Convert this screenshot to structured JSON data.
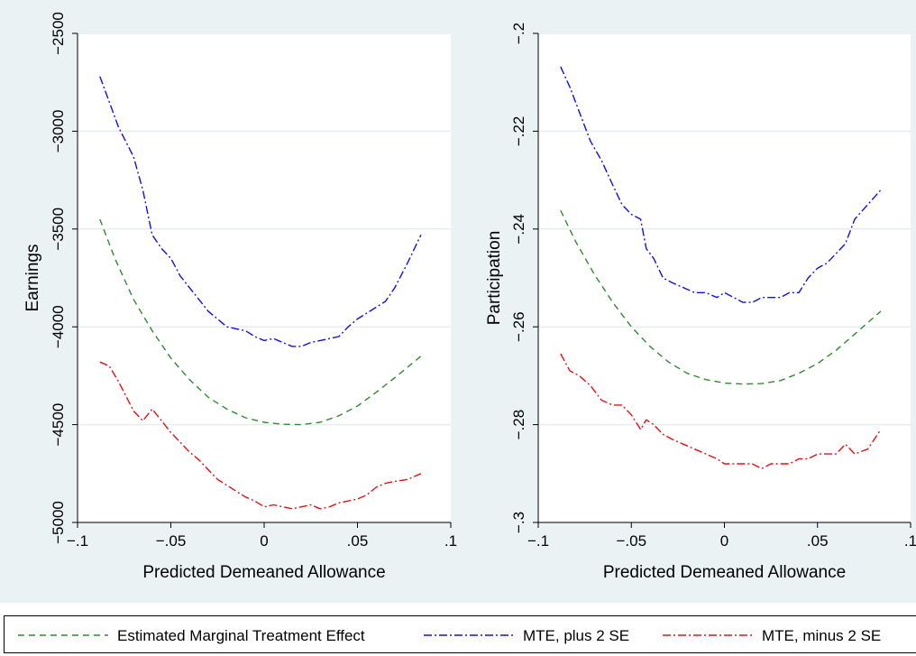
{
  "chart_data": [
    {
      "type": "line",
      "xlabel": "Predicted Demeaned Allowance",
      "ylabel": "Earnings",
      "xlim": [
        -0.1,
        0.1
      ],
      "ylim": [
        -5000,
        -2500
      ],
      "xticks": [
        -0.1,
        -0.05,
        0,
        0.05,
        0.1
      ],
      "xtick_labels": [
        "−.1",
        "−.05",
        "0",
        ".05",
        ".1"
      ],
      "yticks": [
        -5000,
        -4500,
        -4000,
        -3500,
        -3000,
        -2500
      ],
      "ytick_labels": [
        "−5000",
        "−4500",
        "−4000",
        "−3500",
        "−3000",
        "−2500"
      ],
      "grid": true,
      "series": [
        {
          "key": "mte",
          "color": "#2e8b2e",
          "dash": "7,5",
          "x": [
            -0.088,
            -0.08,
            -0.07,
            -0.06,
            -0.05,
            -0.04,
            -0.03,
            -0.02,
            -0.01,
            0,
            0.01,
            0.02,
            0.03,
            0.04,
            0.05,
            0.06,
            0.07,
            0.084
          ],
          "y": [
            -3450,
            -3650,
            -3860,
            -4020,
            -4160,
            -4270,
            -4360,
            -4420,
            -4465,
            -4488,
            -4498,
            -4500,
            -4488,
            -4455,
            -4405,
            -4335,
            -4260,
            -4150
          ]
        },
        {
          "key": "upper",
          "color": "#1010e6",
          "dash": "9,3,2,3",
          "x": [
            -0.088,
            -0.083,
            -0.078,
            -0.07,
            -0.065,
            -0.06,
            -0.055,
            -0.05,
            -0.045,
            -0.04,
            -0.035,
            -0.03,
            -0.025,
            -0.02,
            -0.015,
            -0.01,
            -0.005,
            0,
            0.005,
            0.01,
            0.015,
            0.02,
            0.025,
            0.03,
            0.035,
            0.04,
            0.045,
            0.05,
            0.055,
            0.06,
            0.065,
            0.07,
            0.077,
            0.084
          ],
          "y": [
            -2720,
            -2850,
            -2980,
            -3130,
            -3300,
            -3530,
            -3600,
            -3650,
            -3740,
            -3800,
            -3860,
            -3920,
            -3960,
            -4000,
            -4010,
            -4020,
            -4050,
            -4070,
            -4060,
            -4080,
            -4100,
            -4100,
            -4080,
            -4070,
            -4060,
            -4050,
            -4000,
            -3960,
            -3930,
            -3900,
            -3870,
            -3800,
            -3670,
            -3530
          ]
        },
        {
          "key": "lower",
          "color": "#e61010",
          "dash": "9,3,2,3",
          "x": [
            -0.088,
            -0.083,
            -0.078,
            -0.07,
            -0.065,
            -0.06,
            -0.055,
            -0.05,
            -0.045,
            -0.04,
            -0.035,
            -0.03,
            -0.025,
            -0.02,
            -0.015,
            -0.01,
            -0.005,
            0,
            0.005,
            0.01,
            0.015,
            0.02,
            0.025,
            0.03,
            0.035,
            0.04,
            0.045,
            0.05,
            0.055,
            0.06,
            0.065,
            0.07,
            0.077,
            0.084
          ],
          "y": [
            -4180,
            -4200,
            -4280,
            -4430,
            -4480,
            -4420,
            -4480,
            -4540,
            -4590,
            -4640,
            -4680,
            -4730,
            -4780,
            -4810,
            -4840,
            -4870,
            -4890,
            -4920,
            -4910,
            -4920,
            -4930,
            -4920,
            -4910,
            -4930,
            -4920,
            -4900,
            -4890,
            -4880,
            -4860,
            -4820,
            -4800,
            -4790,
            -4780,
            -4750
          ]
        }
      ]
    },
    {
      "type": "line",
      "xlabel": "Predicted Demeaned Allowance",
      "ylabel": "Participation",
      "xlim": [
        -0.1,
        0.1
      ],
      "ylim": [
        -0.3,
        -0.2
      ],
      "xticks": [
        -0.1,
        -0.05,
        0,
        0.05,
        0.1
      ],
      "xtick_labels": [
        "−.1",
        "−.05",
        "0",
        ".05",
        ".1"
      ],
      "yticks": [
        -0.3,
        -0.28,
        -0.26,
        -0.24,
        -0.22,
        -0.2
      ],
      "ytick_labels": [
        "−.3",
        "−.28",
        "−.26",
        "−.24",
        "−.22",
        "−.2"
      ],
      "grid": true,
      "series": [
        {
          "key": "mte",
          "color": "#2e8b2e",
          "dash": "7,5",
          "x": [
            -0.088,
            -0.08,
            -0.07,
            -0.06,
            -0.05,
            -0.04,
            -0.03,
            -0.02,
            -0.01,
            0,
            0.01,
            0.02,
            0.03,
            0.04,
            0.05,
            0.06,
            0.07,
            0.084
          ],
          "y": [
            -0.2362,
            -0.2425,
            -0.2492,
            -0.255,
            -0.26,
            -0.264,
            -0.2672,
            -0.2695,
            -0.2708,
            -0.2715,
            -0.2717,
            -0.2716,
            -0.271,
            -0.2695,
            -0.2675,
            -0.2648,
            -0.2615,
            -0.2568
          ]
        },
        {
          "key": "upper",
          "color": "#1010e6",
          "dash": "9,3,2,3",
          "x": [
            -0.088,
            -0.083,
            -0.078,
            -0.072,
            -0.066,
            -0.06,
            -0.055,
            -0.05,
            -0.045,
            -0.042,
            -0.038,
            -0.033,
            -0.028,
            -0.022,
            -0.016,
            -0.01,
            -0.004,
            0,
            0.005,
            0.01,
            0.015,
            0.02,
            0.025,
            0.03,
            0.035,
            0.04,
            0.045,
            0.05,
            0.055,
            0.06,
            0.065,
            0.07,
            0.077,
            0.084
          ],
          "y": [
            -0.2068,
            -0.211,
            -0.216,
            -0.222,
            -0.226,
            -0.231,
            -0.235,
            -0.237,
            -0.238,
            -0.244,
            -0.246,
            -0.25,
            -0.251,
            -0.252,
            -0.253,
            -0.253,
            -0.254,
            -0.253,
            -0.254,
            -0.255,
            -0.255,
            -0.254,
            -0.254,
            -0.254,
            -0.253,
            -0.253,
            -0.25,
            -0.248,
            -0.247,
            -0.245,
            -0.243,
            -0.238,
            -0.235,
            -0.232
          ]
        },
        {
          "key": "lower",
          "color": "#e61010",
          "dash": "9,3,2,3",
          "x": [
            -0.088,
            -0.083,
            -0.078,
            -0.072,
            -0.066,
            -0.06,
            -0.055,
            -0.05,
            -0.045,
            -0.042,
            -0.038,
            -0.033,
            -0.028,
            -0.022,
            -0.016,
            -0.01,
            -0.004,
            0,
            0.005,
            0.01,
            0.015,
            0.02,
            0.025,
            0.03,
            0.035,
            0.04,
            0.045,
            0.05,
            0.055,
            0.06,
            0.065,
            0.07,
            0.077,
            0.084
          ],
          "y": [
            -0.2655,
            -0.269,
            -0.27,
            -0.272,
            -0.275,
            -0.276,
            -0.276,
            -0.278,
            -0.281,
            -0.279,
            -0.28,
            -0.282,
            -0.283,
            -0.284,
            -0.285,
            -0.286,
            -0.287,
            -0.288,
            -0.288,
            -0.288,
            -0.288,
            -0.289,
            -0.288,
            -0.288,
            -0.288,
            -0.287,
            -0.287,
            -0.286,
            -0.286,
            -0.286,
            -0.284,
            -0.286,
            -0.285,
            -0.281
          ]
        }
      ]
    }
  ],
  "legend": {
    "items": [
      {
        "label": "Estimated Marginal Treatment Effect",
        "color": "#2e8b2e",
        "dash": "7,5"
      },
      {
        "label": "MTE, plus 2 SE",
        "color": "#1010e6",
        "dash": "9,3,2,3"
      },
      {
        "label": "MTE, minus 2 SE",
        "color": "#e61010",
        "dash": "9,3,2,3"
      }
    ]
  }
}
